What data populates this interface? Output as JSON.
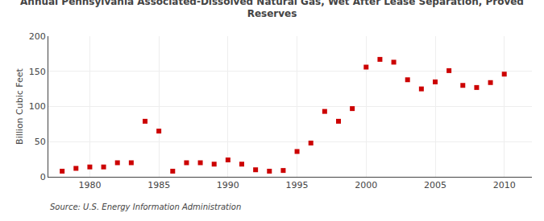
{
  "chart_data": {
    "type": "scatter",
    "title": "Annual Pennsylvania Associated-Dissolved Natural Gas, Wet After Lease Separation, Proved\nReserves",
    "ylabel": "Billion Cubic Feet",
    "annotations": [
      "Source: U.S. Energy Information Administration"
    ],
    "x": [
      1978,
      1979,
      1980,
      1981,
      1982,
      1983,
      1984,
      1985,
      1986,
      1987,
      1988,
      1989,
      1990,
      1991,
      1992,
      1993,
      1994,
      1995,
      1996,
      1997,
      1998,
      1999,
      2000,
      2001,
      2002,
      2003,
      2004,
      2005,
      2006,
      2007,
      2008,
      2009,
      2010
    ],
    "values": [
      8,
      12,
      14,
      14,
      20,
      20,
      79,
      65,
      8,
      20,
      20,
      18,
      24,
      18,
      10,
      8,
      9,
      36,
      48,
      93,
      79,
      97,
      156,
      167,
      163,
      138,
      125,
      135,
      151,
      130,
      127,
      134,
      146
    ],
    "color": "#cc0000",
    "marker": "square",
    "xlim": [
      1977,
      2012
    ],
    "xticks": [
      1980,
      1985,
      1990,
      1995,
      2000,
      2005,
      2010
    ],
    "ylim": [
      0,
      200
    ],
    "yticks": [
      0,
      50,
      100,
      150,
      200
    ],
    "grid": true
  }
}
